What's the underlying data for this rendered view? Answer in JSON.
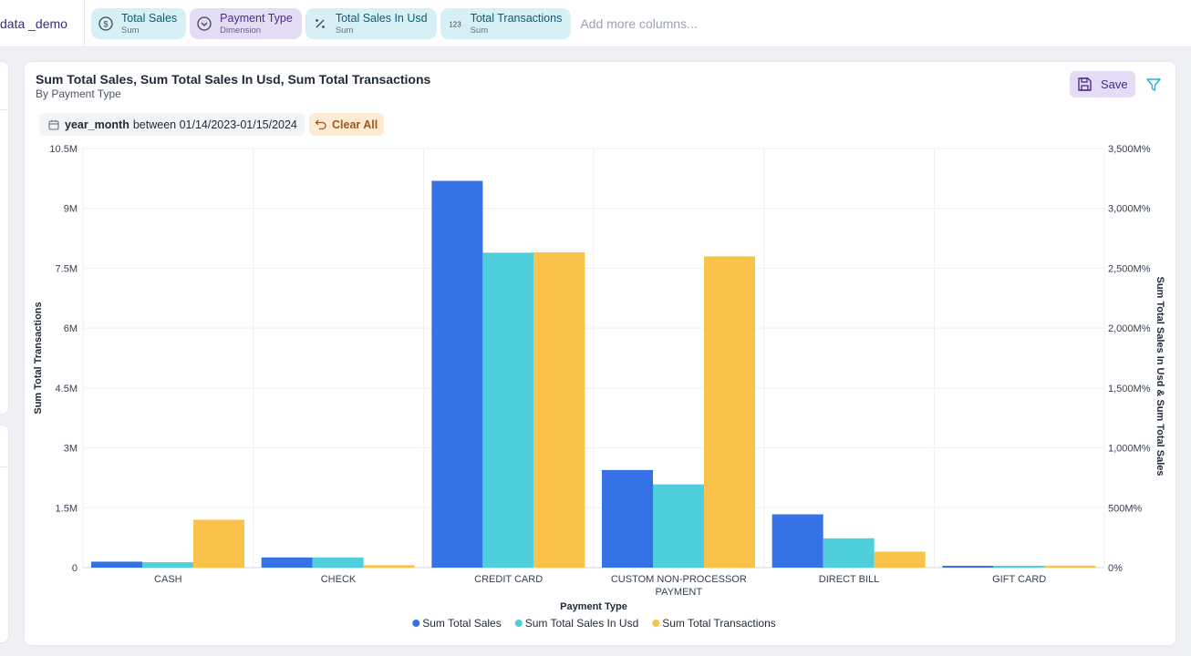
{
  "dataset": {
    "name": "data _demo"
  },
  "columns": [
    {
      "name": "Total Sales",
      "sub": "Sum",
      "kind": "measure",
      "icon": "dollar-icon"
    },
    {
      "name": "Payment Type",
      "sub": "Dimension",
      "kind": "dimension",
      "icon": "chevron-circle-icon"
    },
    {
      "name": "Total Sales In Usd",
      "sub": "Sum",
      "kind": "measure",
      "icon": "percent-icon"
    },
    {
      "name": "Total Transactions",
      "sub": "Sum",
      "kind": "measure",
      "icon": "number-icon",
      "icon_text": "123"
    }
  ],
  "add_more_placeholder": "Add more columns...",
  "card": {
    "title": "Sum Total Sales, Sum Total Sales In Usd, Sum Total Transactions",
    "subtitle": "By Payment Type",
    "save_label": "Save"
  },
  "filters": {
    "field": "year_month",
    "text": "between 01/14/2023-01/15/2024",
    "clear_label": "Clear All"
  },
  "colors": {
    "sales": "#3672e6",
    "sales_usd": "#4ecfdb",
    "transactions": "#f8c24b"
  },
  "chart_data": {
    "type": "bar",
    "xlabel": "Payment Type",
    "ylabel_left": "Sum Total Transactions",
    "ylabel_right": "Sum Total Sales In Usd & Sum Total Sales",
    "categories": [
      [
        "CASH"
      ],
      [
        "CHECK"
      ],
      [
        "CREDIT CARD"
      ],
      [
        "CUSTOM NON-PROCESSOR",
        "PAYMENT"
      ],
      [
        "DIRECT BILL"
      ],
      [
        "GIFT CARD"
      ]
    ],
    "left_axis": {
      "ylim": [
        0,
        10500000
      ],
      "ticks": [
        0,
        1500000,
        3000000,
        4500000,
        6000000,
        7500000,
        9000000,
        10500000
      ],
      "tick_labels": [
        "0",
        "1.5M",
        "3M",
        "4.5M",
        "6M",
        "7.5M",
        "9M",
        "10.5M"
      ]
    },
    "right_axis": {
      "ylim": [
        0,
        3500
      ],
      "ticks": [
        0,
        500,
        1000,
        1500,
        2000,
        2500,
        3000,
        3500
      ],
      "tick_labels": [
        "0%",
        "500M%",
        "1,000M%",
        "1,500M%",
        "2,000M%",
        "2,500M%",
        "3,000M%",
        "3,500M%"
      ]
    },
    "series": [
      {
        "name": "Sum Total Sales",
        "axis": "right",
        "color": "#3672e6",
        "values": [
          50,
          85,
          3230,
          815,
          445,
          15
        ]
      },
      {
        "name": "Sum Total Sales In Usd",
        "axis": "right",
        "color": "#4ecfdb",
        "values": [
          45,
          85,
          2630,
          695,
          245,
          15
        ]
      },
      {
        "name": "Sum Total Transactions",
        "axis": "left",
        "color": "#f8c24b",
        "values": [
          1200000,
          60000,
          7900000,
          7800000,
          400000,
          50000
        ]
      }
    ],
    "grid": true,
    "legend": "bottom-center"
  }
}
